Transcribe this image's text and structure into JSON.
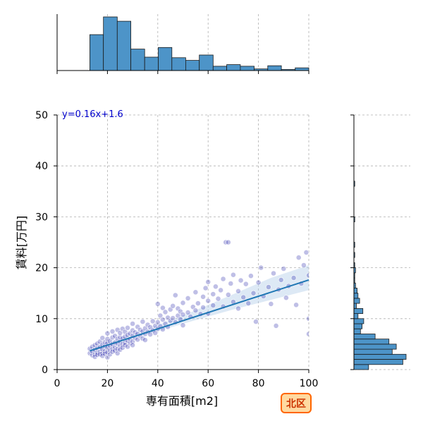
{
  "badge": {
    "label": "北区",
    "text_color": "#cc3300",
    "fill": "#ffd9a0",
    "border": "#ff6600"
  },
  "chart_data": {
    "type": "scatter",
    "xlabel": "専有面積[m2]",
    "ylabel": "賃料[万円]",
    "xlim": [
      0,
      100
    ],
    "ylim": [
      0,
      50
    ],
    "xticks": [
      0,
      20,
      40,
      60,
      80,
      100
    ],
    "yticks": [
      0,
      10,
      20,
      30,
      40,
      50
    ],
    "grid": true,
    "point_color": "#1a1aa6",
    "line_color": "#1f77b4",
    "band_color": "#a9c8e6",
    "hist_color": "#4d94c8",
    "regression": {
      "label": "y=0.16x+1.6",
      "label_color": "#0000cc",
      "slope": 0.16,
      "intercept": 1.6,
      "x_range": [
        13,
        100
      ],
      "band": [
        {
          "x": 13,
          "lo": 2.9,
          "hi": 4.3
        },
        {
          "x": 30,
          "lo": 6.1,
          "hi": 6.9
        },
        {
          "x": 50,
          "lo": 9.0,
          "hi": 10.6
        },
        {
          "x": 70,
          "lo": 11.8,
          "hi": 14.8
        },
        {
          "x": 85,
          "lo": 13.7,
          "hi": 18.0
        },
        {
          "x": 100,
          "lo": 15.6,
          "hi": 20.5
        }
      ]
    },
    "top_histogram": {
      "bin_edges": [
        13,
        18.4,
        23.9,
        29.3,
        34.8,
        40.2,
        45.6,
        51.1,
        56.5,
        62.0,
        67.4,
        72.8,
        78.3,
        83.7,
        89.1,
        94.6,
        100
      ],
      "counts": [
        67,
        100,
        92,
        40,
        25,
        43,
        24,
        19,
        29,
        8,
        11,
        8,
        3,
        9,
        2,
        5
      ]
    },
    "right_histogram": {
      "bin_edges": [
        0,
        1,
        2,
        3,
        4,
        5,
        6,
        7,
        8,
        9,
        10,
        11,
        12,
        13,
        14,
        15,
        16,
        17,
        18,
        19,
        20,
        21,
        22,
        23,
        24,
        25,
        26,
        27,
        28,
        29,
        30,
        31,
        32,
        33,
        34,
        35,
        36,
        37,
        38,
        39,
        40
      ],
      "counts": [
        18,
        60,
        64,
        47,
        52,
        43,
        26,
        8,
        10,
        12,
        5,
        11,
        3,
        7,
        5,
        4,
        2,
        1,
        1,
        2,
        1,
        0,
        1,
        0,
        1,
        0,
        0,
        0,
        0,
        1,
        0,
        0,
        0,
        0,
        0,
        0,
        1,
        0,
        0,
        0
      ]
    },
    "points": [
      [
        13,
        3.2
      ],
      [
        13,
        4.1
      ],
      [
        14,
        2.8
      ],
      [
        14,
        3.6
      ],
      [
        14,
        4.5
      ],
      [
        15,
        3.0
      ],
      [
        15,
        3.9
      ],
      [
        15,
        4.8
      ],
      [
        15,
        2.5
      ],
      [
        16,
        3.3
      ],
      [
        16,
        4.2
      ],
      [
        16,
        5.1
      ],
      [
        16,
        2.9
      ],
      [
        17,
        3.5
      ],
      [
        17,
        4.4
      ],
      [
        17,
        3.0
      ],
      [
        17,
        5.5
      ],
      [
        18,
        3.2
      ],
      [
        18,
        4.0
      ],
      [
        18,
        4.9
      ],
      [
        18,
        2.7
      ],
      [
        18,
        6.2
      ],
      [
        19,
        3.6
      ],
      [
        19,
        4.6
      ],
      [
        19,
        5.4
      ],
      [
        19,
        3.1
      ],
      [
        20,
        3.4
      ],
      [
        20,
        4.3
      ],
      [
        20,
        5.2
      ],
      [
        20,
        6.0
      ],
      [
        20,
        2.4
      ],
      [
        20,
        7.1
      ],
      [
        21,
        3.8
      ],
      [
        21,
        4.7
      ],
      [
        21,
        5.6
      ],
      [
        21,
        3.0
      ],
      [
        22,
        4.1
      ],
      [
        22,
        5.0
      ],
      [
        22,
        6.3
      ],
      [
        22,
        3.5
      ],
      [
        22,
        7.5
      ],
      [
        23,
        4.4
      ],
      [
        23,
        5.3
      ],
      [
        23,
        3.7
      ],
      [
        23,
        6.6
      ],
      [
        24,
        4.0
      ],
      [
        24,
        5.1
      ],
      [
        24,
        6.0
      ],
      [
        24,
        7.8
      ],
      [
        24,
        3.2
      ],
      [
        25,
        4.6
      ],
      [
        25,
        5.5
      ],
      [
        25,
        6.4
      ],
      [
        25,
        7.2
      ],
      [
        25,
        3.9
      ],
      [
        26,
        5.0
      ],
      [
        26,
        6.1
      ],
      [
        26,
        4.3
      ],
      [
        26,
        8.0
      ],
      [
        27,
        5.3
      ],
      [
        27,
        6.5
      ],
      [
        27,
        4.8
      ],
      [
        27,
        7.4
      ],
      [
        28,
        5.7
      ],
      [
        28,
        6.8
      ],
      [
        28,
        4.5
      ],
      [
        28,
        8.2
      ],
      [
        29,
        6.0
      ],
      [
        29,
        7.1
      ],
      [
        29,
        5.2
      ],
      [
        30,
        5.5
      ],
      [
        30,
        6.6
      ],
      [
        30,
        7.7
      ],
      [
        30,
        4.8
      ],
      [
        30,
        9.0
      ],
      [
        31,
        6.2
      ],
      [
        31,
        7.3
      ],
      [
        32,
        5.9
      ],
      [
        32,
        7.0
      ],
      [
        32,
        8.4
      ],
      [
        33,
        6.6
      ],
      [
        33,
        7.8
      ],
      [
        34,
        6.1
      ],
      [
        34,
        7.5
      ],
      [
        34,
        9.4
      ],
      [
        35,
        7.0
      ],
      [
        35,
        8.1
      ],
      [
        35,
        5.8
      ],
      [
        36,
        7.4
      ],
      [
        36,
        8.8
      ],
      [
        37,
        6.9
      ],
      [
        37,
        8.3
      ],
      [
        38,
        7.7
      ],
      [
        38,
        9.5
      ],
      [
        39,
        7.2
      ],
      [
        39,
        8.6
      ],
      [
        40,
        8.0
      ],
      [
        40,
        9.3
      ],
      [
        40,
        12.9
      ],
      [
        41,
        8.5
      ],
      [
        41,
        10.6
      ],
      [
        42,
        7.9
      ],
      [
        42,
        9.8
      ],
      [
        42,
        12.1
      ],
      [
        43,
        9.0
      ],
      [
        43,
        11.3
      ],
      [
        44,
        8.4
      ],
      [
        44,
        10.2
      ],
      [
        45,
        9.6
      ],
      [
        45,
        11.8
      ],
      [
        46,
        10.1
      ],
      [
        46,
        12.5
      ],
      [
        47,
        9.3
      ],
      [
        47,
        14.6
      ],
      [
        48,
        10.6
      ],
      [
        48,
        12.0
      ],
      [
        49,
        9.9
      ],
      [
        49,
        11.4
      ],
      [
        50,
        10.8
      ],
      [
        50,
        13.1
      ],
      [
        50,
        8.7
      ],
      [
        52,
        11.2
      ],
      [
        52,
        14.0
      ],
      [
        53,
        10.4
      ],
      [
        54,
        12.3
      ],
      [
        55,
        11.6
      ],
      [
        55,
        15.2
      ],
      [
        56,
        13.0
      ],
      [
        57,
        10.9
      ],
      [
        58,
        14.3
      ],
      [
        58,
        12.2
      ],
      [
        59,
        16.0
      ],
      [
        60,
        13.5
      ],
      [
        60,
        11.0
      ],
      [
        60,
        17.2
      ],
      [
        62,
        14.8
      ],
      [
        62,
        12.6
      ],
      [
        63,
        16.3
      ],
      [
        64,
        13.9
      ],
      [
        65,
        15.6
      ],
      [
        66,
        12.4
      ],
      [
        66,
        17.8
      ],
      [
        67,
        25.0
      ],
      [
        68,
        14.7
      ],
      [
        68,
        25.0
      ],
      [
        69,
        16.9
      ],
      [
        70,
        13.3
      ],
      [
        70,
        18.6
      ],
      [
        72,
        15.4
      ],
      [
        72,
        12.0
      ],
      [
        73,
        17.5
      ],
      [
        74,
        14.2
      ],
      [
        75,
        16.8
      ],
      [
        76,
        13.0
      ],
      [
        77,
        18.4
      ],
      [
        78,
        15.0
      ],
      [
        79,
        9.4
      ],
      [
        80,
        17.1
      ],
      [
        81,
        20.0
      ],
      [
        82,
        14.4
      ],
      [
        84,
        16.2
      ],
      [
        85,
        12.9
      ],
      [
        86,
        18.9
      ],
      [
        87,
        8.6
      ],
      [
        88,
        15.7
      ],
      [
        89,
        17.6
      ],
      [
        90,
        19.8
      ],
      [
        91,
        14.1
      ],
      [
        92,
        16.4
      ],
      [
        94,
        18.0
      ],
      [
        95,
        12.7
      ],
      [
        96,
        22.0
      ],
      [
        97,
        16.9
      ],
      [
        98,
        20.5
      ],
      [
        99,
        23.0
      ],
      [
        100,
        7.0
      ],
      [
        100,
        10.0
      ],
      [
        100,
        18.5
      ]
    ]
  }
}
